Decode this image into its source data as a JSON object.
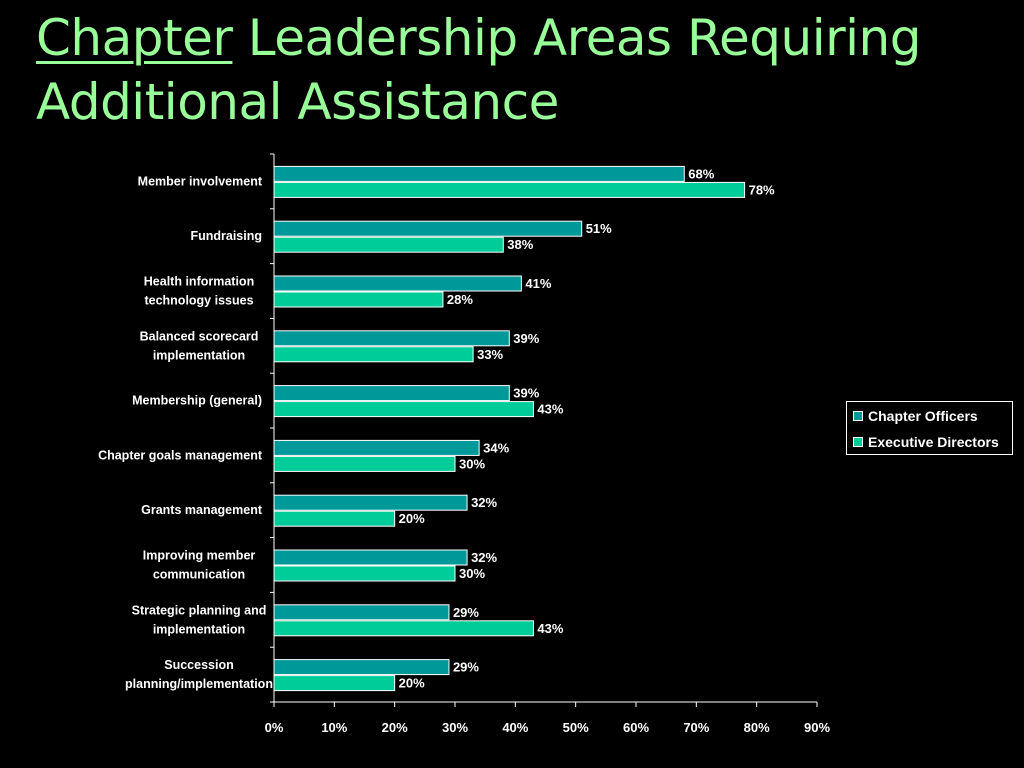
{
  "slide": {
    "title_part1": "Chapter",
    "title_part2": " Leadership Areas Requiring Additional Assistance"
  },
  "colors": {
    "background": "#000000",
    "title": "#99ff99",
    "chapter_officers": "#009999",
    "executive_directors": "#00cc99",
    "text": "#ffffff"
  },
  "chart_data": {
    "type": "bar",
    "orientation": "horizontal",
    "categories": [
      "Member involvement",
      "Fundraising",
      "Health information technology issues",
      "Balanced scorecard implementation",
      "Membership (general)",
      "Chapter goals management",
      "Grants management",
      "Improving member communication",
      "Strategic planning and implementation",
      "Succession planning/implementation"
    ],
    "category_lines": [
      [
        "Member involvement"
      ],
      [
        "Fundraising"
      ],
      [
        "Health information",
        "technology issues"
      ],
      [
        "Balanced scorecard",
        "implementation"
      ],
      [
        "Membership (general)"
      ],
      [
        "Chapter goals management"
      ],
      [
        "Grants management"
      ],
      [
        "Improving member",
        "communication"
      ],
      [
        "Strategic planning and",
        "implementation"
      ],
      [
        "Succession",
        "planning/implementation"
      ]
    ],
    "series": [
      {
        "name": "Chapter Officers",
        "values": [
          68,
          51,
          41,
          39,
          39,
          34,
          32,
          32,
          29,
          29
        ]
      },
      {
        "name": "Executive Directors",
        "values": [
          78,
          38,
          28,
          33,
          43,
          30,
          20,
          30,
          43,
          20
        ]
      }
    ],
    "value_suffix": "%",
    "xlim": [
      0,
      90
    ],
    "xticks": [
      "0%",
      "10%",
      "20%",
      "30%",
      "40%",
      "50%",
      "60%",
      "70%",
      "80%",
      "90%"
    ],
    "legend_position": "right",
    "grid": false
  }
}
